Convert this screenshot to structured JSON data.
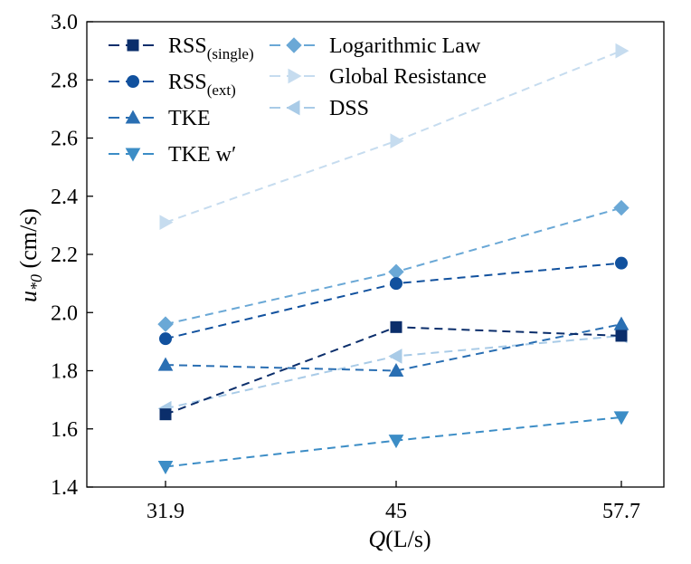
{
  "chart_data": {
    "type": "line",
    "title": "",
    "xlabel": {
      "var": "Q",
      "unit": "(L/s)"
    },
    "ylabel": {
      "var": "u",
      "sub": "*0",
      "unit": " (cm/s)"
    },
    "categories": [
      "31.9",
      "45",
      "57.7"
    ],
    "ylim": [
      1.4,
      3.0
    ],
    "yticks": [
      "1.4",
      "1.6",
      "1.8",
      "2.0",
      "2.2",
      "2.4",
      "2.6",
      "2.8",
      "3.0"
    ],
    "grid": false,
    "legend_position": "top-left",
    "series": [
      {
        "name": "RSS",
        "sub": "(single)",
        "marker": "square",
        "color": "#0b2e6b",
        "values": [
          1.65,
          1.95,
          1.92
        ]
      },
      {
        "name": "RSS",
        "sub": "(ext)",
        "marker": "circle",
        "color": "#11519e",
        "values": [
          1.91,
          2.1,
          2.17
        ]
      },
      {
        "name": "TKE",
        "sub": "",
        "marker": "triangle-up",
        "color": "#2a6fb3",
        "values": [
          1.82,
          1.8,
          1.96
        ]
      },
      {
        "name": "TKE w′",
        "sub": "",
        "marker": "triangle-down",
        "color": "#3c8dc6",
        "values": [
          1.47,
          1.56,
          1.64
        ]
      },
      {
        "name": "Logarithmic Law",
        "sub": "",
        "marker": "diamond",
        "color": "#6aa8d6",
        "values": [
          1.96,
          2.14,
          2.36
        ]
      },
      {
        "name": "Global Resistance",
        "sub": "",
        "marker": "triangle-right",
        "color": "#c6dcef",
        "values": [
          2.31,
          2.59,
          2.9
        ]
      },
      {
        "name": "DSS",
        "sub": "",
        "marker": "triangle-left",
        "color": "#a9cbe7",
        "values": [
          1.67,
          1.85,
          1.92
        ]
      }
    ]
  }
}
